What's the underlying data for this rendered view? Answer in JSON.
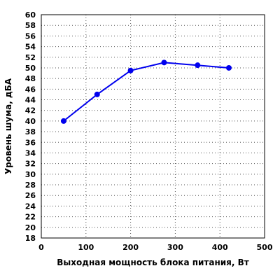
{
  "chart_data": {
    "type": "line",
    "title": "",
    "xlabel": "Выходная мощность блока питания, Вт",
    "ylabel": "Уровень шума, дБА",
    "xlim": [
      0,
      500
    ],
    "ylim": [
      18,
      60
    ],
    "xticks": [
      0,
      100,
      200,
      300,
      400,
      500
    ],
    "yticks": [
      18,
      20,
      22,
      24,
      26,
      28,
      30,
      32,
      34,
      36,
      38,
      40,
      42,
      44,
      46,
      48,
      50,
      52,
      54,
      56,
      58,
      60
    ],
    "grid": true,
    "series": [
      {
        "color": "#0000ee",
        "x": [
          50,
          125,
          200,
          275,
          350,
          420
        ],
        "y": [
          40,
          45,
          49.5,
          51,
          50.5,
          50
        ]
      }
    ]
  }
}
